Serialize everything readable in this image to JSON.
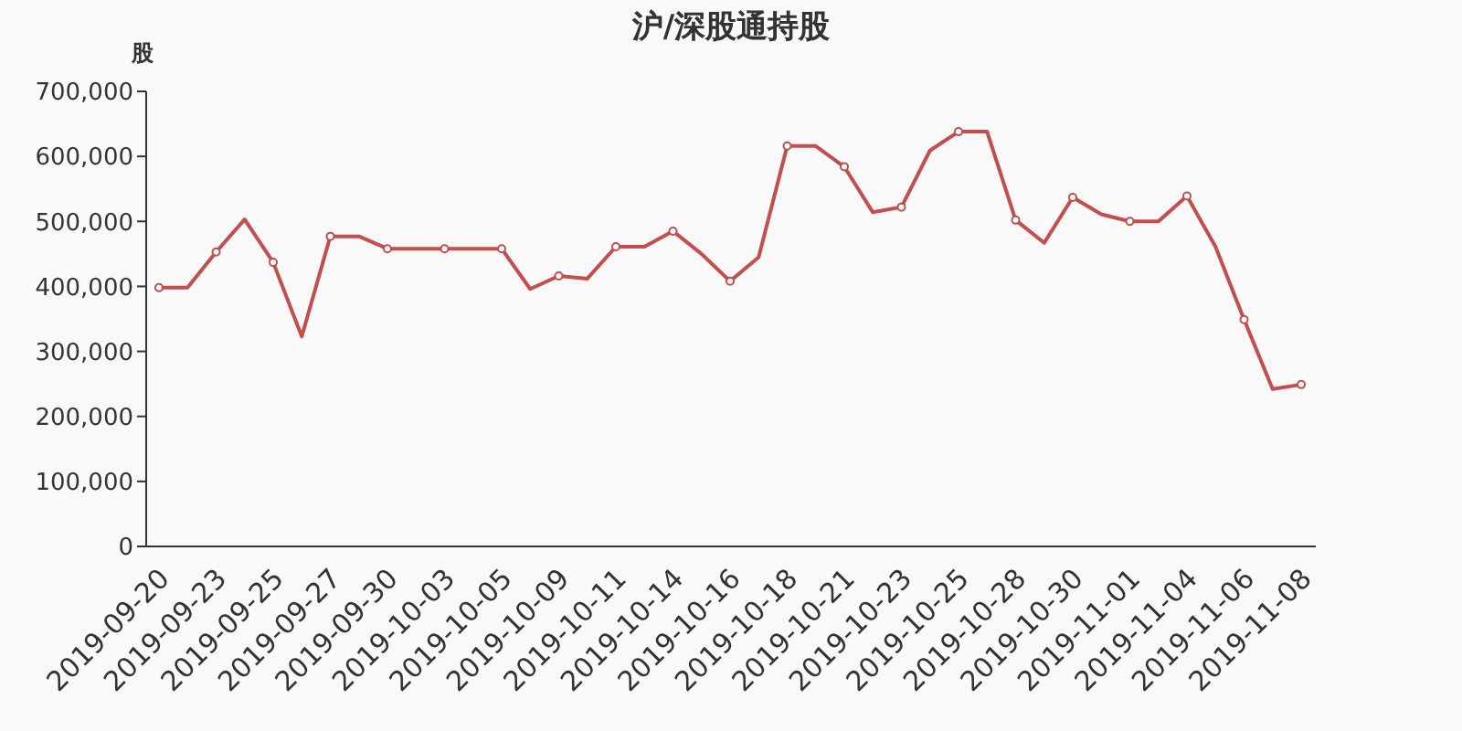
{
  "chart_data": {
    "type": "line",
    "title": "沪/深股通持股",
    "ylabel": "股",
    "categories": [
      "2019-09-20",
      null,
      "2019-09-23",
      null,
      "2019-09-25",
      null,
      "2019-09-27",
      null,
      "2019-09-30",
      null,
      "2019-10-03",
      null,
      "2019-10-05",
      null,
      "2019-10-09",
      null,
      "2019-10-11",
      null,
      "2019-10-14",
      null,
      "2019-10-16",
      null,
      "2019-10-18",
      null,
      "2019-10-21",
      null,
      "2019-10-23",
      null,
      "2019-10-25",
      null,
      "2019-10-28",
      null,
      "2019-10-30",
      null,
      "2019-11-01",
      null,
      "2019-11-04",
      null,
      "2019-11-06",
      null,
      "2019-11-08"
    ],
    "series": [
      {
        "color": "#c44e4e",
        "values": [
          398000,
          398000,
          453000,
          503000,
          437000,
          323000,
          477000,
          477000,
          458000,
          458000,
          458000,
          458000,
          458000,
          396000,
          416000,
          412000,
          461000,
          461000,
          485000,
          450000,
          408000,
          445000,
          616000,
          616000,
          584000,
          514000,
          522000,
          609000,
          638000,
          638000,
          502000,
          467000,
          537000,
          511000,
          500000,
          500000,
          539000,
          461000,
          349000,
          242000,
          249000
        ]
      }
    ],
    "ylim": [
      0,
      700000
    ],
    "yticks": [
      0,
      {
        "value": 100000,
        "label": "100,000"
      },
      {
        "value": 200000,
        "label": "200,000"
      },
      {
        "value": 300000,
        "label": "300,000"
      },
      {
        "value": 400000,
        "label": "400,000"
      },
      {
        "value": 500000,
        "label": "500,000"
      },
      {
        "value": 600000,
        "label": "600,000"
      },
      {
        "value": 700000,
        "label": "700,000"
      }
    ],
    "marker": "circle",
    "line_style": "solid"
  }
}
